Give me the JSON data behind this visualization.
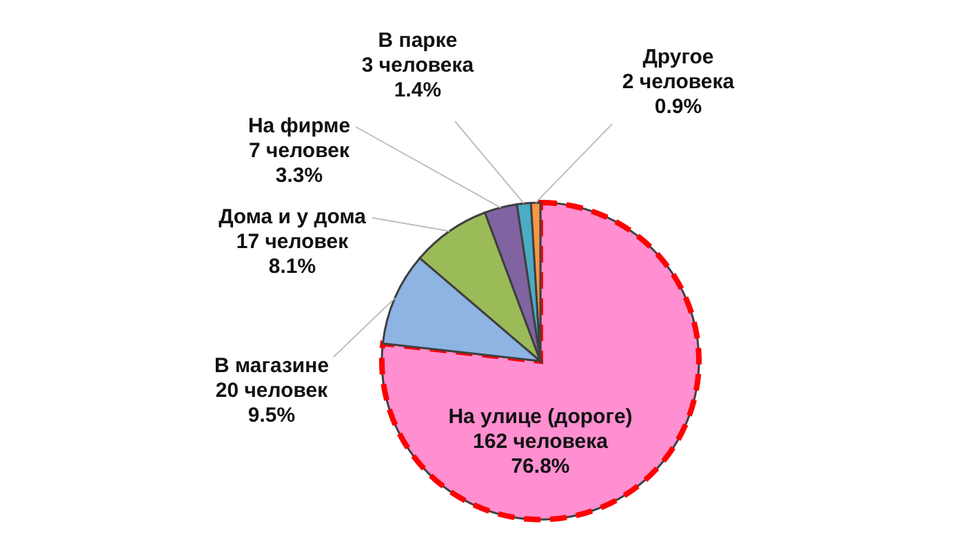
{
  "chart_data": {
    "type": "pie",
    "categories": [
      "На улице (дороге)",
      "В магазине",
      "Дома и у дома",
      "На фирме",
      "В парке",
      "Другое"
    ],
    "values": [
      162,
      20,
      17,
      7,
      3,
      2
    ],
    "value_labels": [
      "162 человека\n76.8%",
      "20 человек\n9.5%",
      "17 человек\n8.1%",
      "7 человек\n3.3%",
      "3 человека\n1.4%",
      "2 человека\n0.9%"
    ],
    "colors": [
      "#ff8fd0",
      "#8db4e2",
      "#9bbb59",
      "#8064a2",
      "#4bacc6",
      "#f79646"
    ],
    "legend": false
  }
}
